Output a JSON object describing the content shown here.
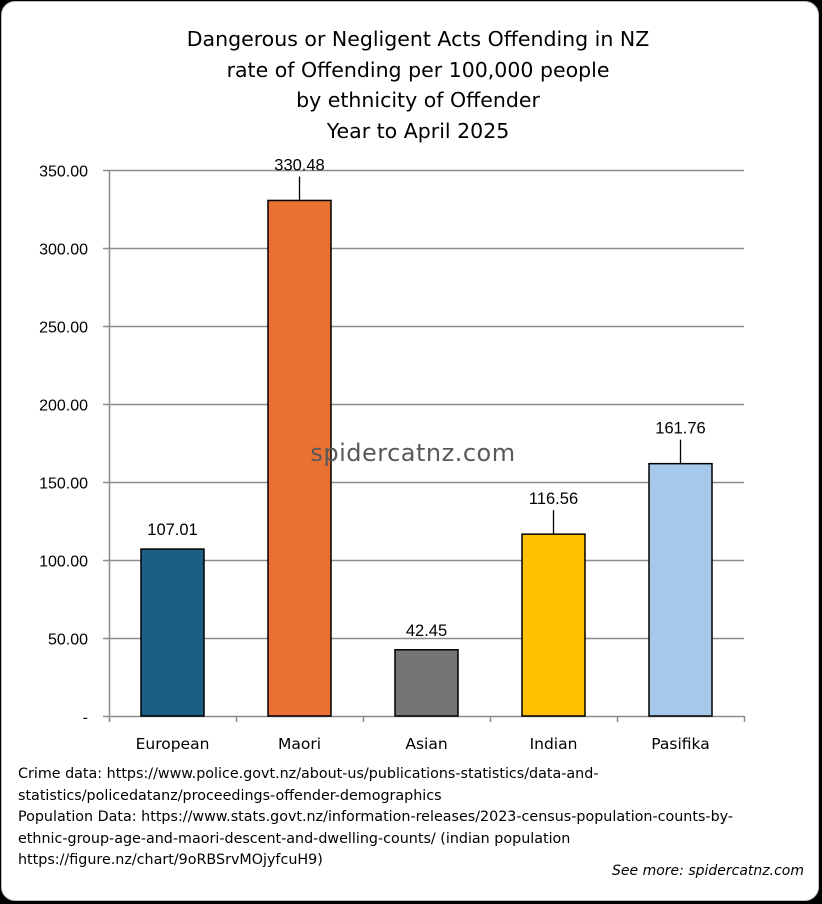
{
  "chart_data": {
    "type": "bar",
    "title_lines": [
      "Dangerous or Negligent Acts Offending in NZ",
      "rate of Offending per 100,000 people",
      "by ethnicity of Offender",
      "Year to April 2025"
    ],
    "categories": [
      "European",
      "Maori",
      "Asian",
      "Indian",
      "Pasifika"
    ],
    "values": [
      107.01,
      330.48,
      42.45,
      116.56,
      161.76
    ],
    "value_labels": [
      "107.01",
      "330.48",
      "42.45",
      "116.56",
      "161.76"
    ],
    "colors": [
      "#1a5f85",
      "#e97131",
      "#757575",
      "#ffc000",
      "#a6c8eb"
    ],
    "ylim": [
      0,
      350
    ],
    "yticks": [
      0,
      50,
      100,
      150,
      200,
      250,
      300,
      350
    ],
    "ytick_labels": [
      "-",
      "50.00",
      "100.00",
      "150.00",
      "200.00",
      "250.00",
      "300.00",
      "350.00"
    ],
    "xlabel": "",
    "ylabel": "",
    "grid": true,
    "legend": "none"
  },
  "watermark": "spidercatnz.com",
  "source_lines": [
    "Crime data: https://www.police.govt.nz/about-us/publications-statistics/data-and-",
    "statistics/policedatanz/proceedings-offender-demographics",
    "Population Data: https://www.stats.govt.nz/information-releases/2023-census-population-counts-by-",
    "ethnic-group-age-and-maori-descent-and-dwelling-counts/ (indian population",
    "https://figure.nz/chart/9oRBSrvMOjyfcuH9)"
  ],
  "see_more": "See more: spidercatnz.com"
}
